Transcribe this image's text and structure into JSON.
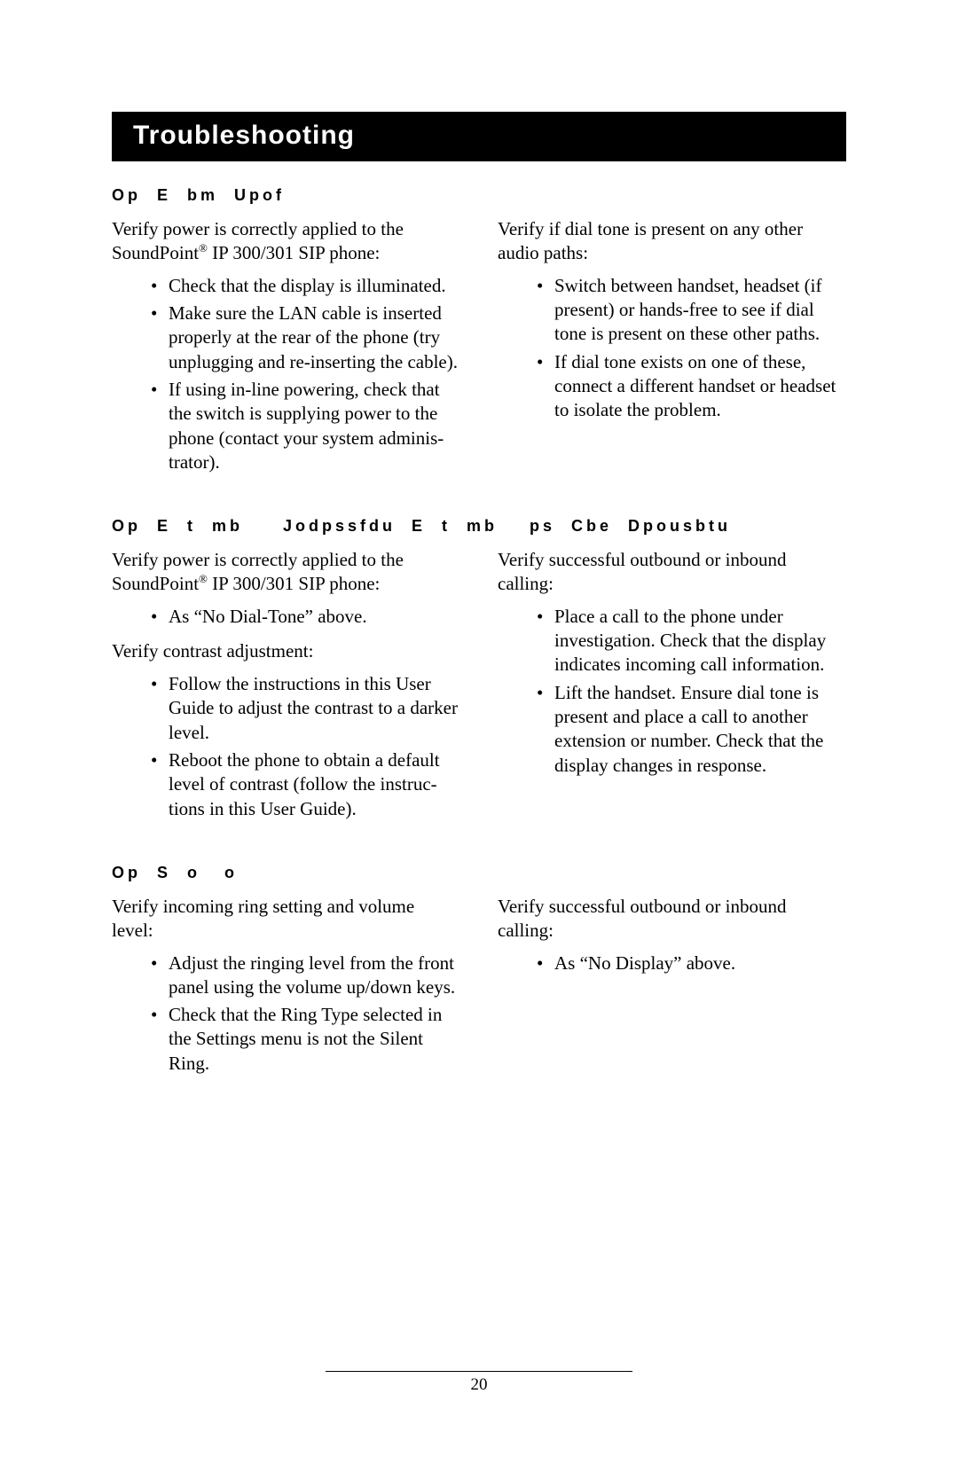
{
  "title": "Troubleshooting",
  "pageNumber": "20",
  "sections": [
    {
      "heading": "Op  E  bm  Upof",
      "columns": [
        {
          "para": "Verify power is correctly applied to the SoundPoint<sup>®</sup> IP 300/301 SIP phone:",
          "items": [
            "Check that the display is illuminated.",
            "Make sure the LAN cable is inserted properly at the rear of the phone (try unplugging and re-inserting the cable).",
            "If using in-line powering, check that the switch is supplying power to the phone (contact your system adminis­trator)."
          ]
        },
        {
          "para": "Verify if dial tone is present on any other audio paths:",
          "items": [
            "Switch between handset, headset (if present) or hands-free to see if dial tone is present on these other paths.",
            "If dial tone exists on one of these, connect a different handset or headset to isolate the problem."
          ]
        }
      ]
    },
    {
      "heading": "Op  E  t  mb     Jodpssfdu  E  t  mb    ps  Cbe  Dpousbtu",
      "columns": [
        {
          "para": "Verify power is correctly applied to the SoundPoint<sup>®</sup> IP 300/301 SIP phone:",
          "items": [
            "As “No Dial-Tone” above."
          ],
          "para2": "Verify contrast adjustment:",
          "items2": [
            "Follow the instructions in this User Guide to adjust the contrast to a darker level.",
            "Reboot the phone to obtain a default level of contrast (follow the instruc­tions in this User Guide)."
          ]
        },
        {
          "para": "Verify successful outbound or inbound calling:",
          "items": [
            "Place a call to the phone under investigation.  Check that the display indicates incoming call information.",
            "Lift the handset.  Ensure dial tone is present and place a call to another extension or number. Check that the display changes in response."
          ]
        }
      ]
    },
    {
      "heading": "Op  S  o   o",
      "columns": [
        {
          "para": "Verify incoming ring setting and volume level:",
          "items": [
            "Adjust the ringing level from the front panel using the volume up/down keys.",
            "Check that the Ring Type selected in the Settings menu is not the Silent Ring."
          ]
        },
        {
          "para": "Verify successful outbound or inbound calling:",
          "items": [
            "As “No Display” above."
          ]
        }
      ]
    }
  ]
}
